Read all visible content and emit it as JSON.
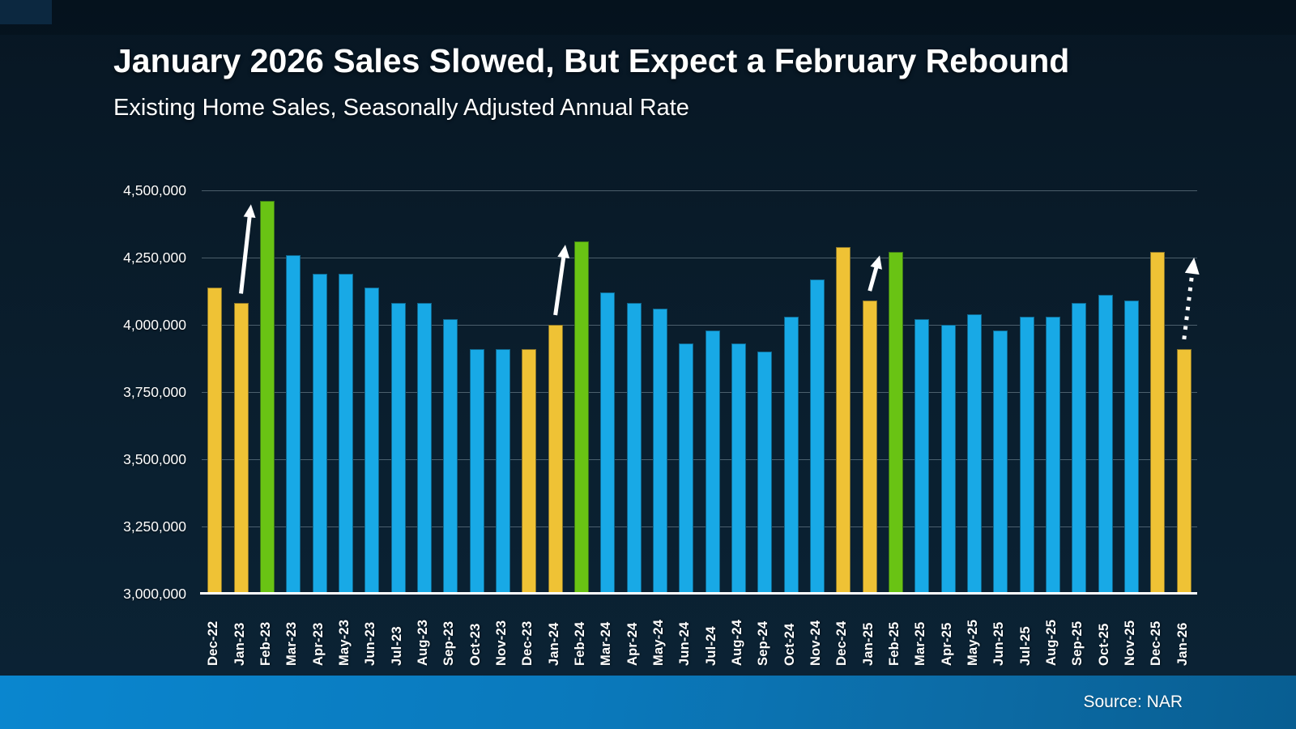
{
  "header": {
    "title": "January 2026 Sales Slowed, But Expect a February Rebound",
    "subtitle": "Existing Home Sales, Seasonally Adjusted Annual Rate"
  },
  "footer": {
    "source": "Source: NAR"
  },
  "palette": {
    "blue": "#18a9e6",
    "gold": "#efc235",
    "green": "#69c314",
    "grid": "rgba(168,186,197,0.42)",
    "axis_line": "#ffffff",
    "arrow": "#ffffff",
    "footer_start": "#0a86cf",
    "footer_end": "#085e92",
    "background": "#0a1f2f"
  },
  "chart_data": {
    "type": "bar",
    "title": "January 2026 Sales Slowed, But Expect a February Rebound",
    "subtitle": "Existing Home Sales, Seasonally Adjusted Annual Rate",
    "xlabel": "",
    "ylabel": "",
    "ylim": [
      3000000,
      4500000
    ],
    "grid": "horizontal",
    "legend": "none",
    "yticks": [
      {
        "value": 3000000,
        "label": "3,000,000"
      },
      {
        "value": 3250000,
        "label": "3,250,000"
      },
      {
        "value": 3500000,
        "label": "3,500,000"
      },
      {
        "value": 3750000,
        "label": "3,750,000"
      },
      {
        "value": 4000000,
        "label": "4,000,000"
      },
      {
        "value": 4250000,
        "label": "4,250,000"
      },
      {
        "value": 4500000,
        "label": "4,500,000"
      }
    ],
    "categories": [
      "Dec-22",
      "Jan-23",
      "Feb-23",
      "Mar-23",
      "Apr-23",
      "May-23",
      "Jun-23",
      "Jul-23",
      "Aug-23",
      "Sep-23",
      "Oct-23",
      "Nov-23",
      "Dec-23",
      "Jan-24",
      "Feb-24",
      "Mar-24",
      "Apr-24",
      "May-24",
      "Jun-24",
      "Jul-24",
      "Aug-24",
      "Sep-24",
      "Oct-24",
      "Nov-24",
      "Dec-24",
      "Jan-25",
      "Feb-25",
      "Mar-25",
      "Apr-25",
      "May-25",
      "Jun-25",
      "Jul-25",
      "Aug-25",
      "Sep-25",
      "Oct-25",
      "Nov-25",
      "Dec-25",
      "Jan-26"
    ],
    "values": [
      4140000,
      4080000,
      4460000,
      4260000,
      4190000,
      4190000,
      4140000,
      4080000,
      4080000,
      4020000,
      3910000,
      3910000,
      3910000,
      4000000,
      4310000,
      4120000,
      4080000,
      4060000,
      3930000,
      3980000,
      3930000,
      3900000,
      4030000,
      4170000,
      4290000,
      4090000,
      4270000,
      4020000,
      4000000,
      4040000,
      3980000,
      4030000,
      4030000,
      4080000,
      4110000,
      4090000,
      4270000,
      3910000
    ],
    "bar_colors": [
      "gold",
      "gold",
      "green",
      "blue",
      "blue",
      "blue",
      "blue",
      "blue",
      "blue",
      "blue",
      "blue",
      "blue",
      "gold",
      "gold",
      "green",
      "blue",
      "blue",
      "blue",
      "blue",
      "blue",
      "blue",
      "blue",
      "blue",
      "blue",
      "gold",
      "gold",
      "green",
      "blue",
      "blue",
      "blue",
      "blue",
      "blue",
      "blue",
      "blue",
      "blue",
      "blue",
      "gold",
      "gold"
    ],
    "annotations": [
      {
        "type": "arrow",
        "style": "solid",
        "from_category": "Jan-23",
        "to_category": "Feb-23"
      },
      {
        "type": "arrow",
        "style": "solid",
        "from_category": "Jan-24",
        "to_category": "Feb-24"
      },
      {
        "type": "arrow",
        "style": "solid",
        "from_category": "Jan-25",
        "to_category": "Feb-25"
      },
      {
        "type": "arrow",
        "style": "dashed",
        "from_category": "Jan-26",
        "to_category": null,
        "implied_value": 4250000
      }
    ]
  }
}
